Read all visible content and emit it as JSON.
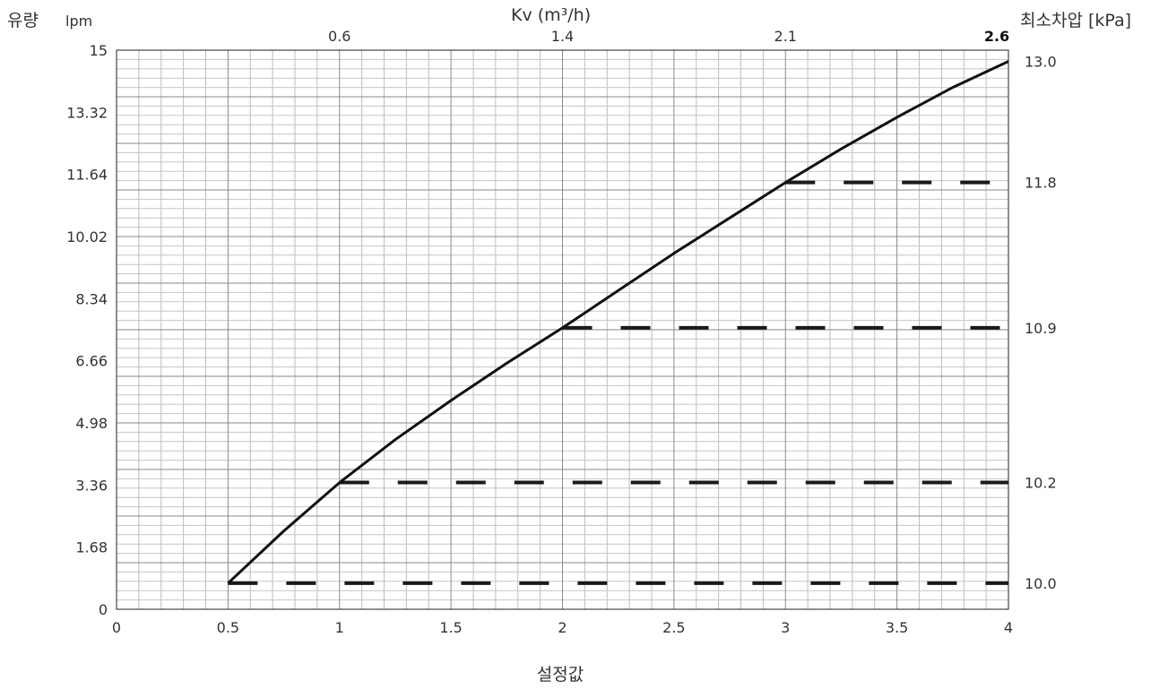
{
  "chart_data": {
    "type": "line",
    "title": "",
    "xlabel": "설정값",
    "ylabel": "유량",
    "ylabel_unit": "lpm",
    "top_axis_label": "Kv (m³/h)",
    "right_axis_label": "최소차압 [kPa]",
    "xlim": [
      0,
      4
    ],
    "ylim": [
      0,
      15
    ],
    "x_ticks": [
      "0",
      "0.5",
      "1",
      "1.5",
      "2",
      "2.5",
      "3",
      "3.5",
      "4"
    ],
    "y_ticks": [
      "0",
      "1.68",
      "3.36",
      "4.98",
      "6.66",
      "8.34",
      "10.02",
      "11.64",
      "13.32",
      "15"
    ],
    "top_ticks": [
      {
        "x": 1,
        "label": "0.6",
        "bold": false
      },
      {
        "x": 2,
        "label": "1.4",
        "bold": false
      },
      {
        "x": 3,
        "label": "2.1",
        "bold": false
      },
      {
        "x": 4,
        "label": "2.6",
        "bold": true
      }
    ],
    "grid": true,
    "series": [
      {
        "x": [
          0.5,
          0.75,
          1.0,
          1.25,
          1.5,
          1.75,
          2.0,
          2.25,
          2.5,
          2.75,
          3.0,
          3.25,
          3.5,
          3.75,
          4.0
        ],
        "y": [
          0.7,
          2.1,
          3.4,
          4.55,
          5.6,
          6.6,
          7.55,
          8.55,
          9.55,
          10.5,
          11.45,
          12.35,
          13.2,
          14.0,
          14.7
        ]
      }
    ],
    "dashed_levels": [
      {
        "x_start": 0.5,
        "x_end": 4,
        "y": 0.7,
        "right_label": "10.0"
      },
      {
        "x_start": 1,
        "x_end": 4,
        "y": 3.4,
        "right_label": "10.2"
      },
      {
        "x_start": 2,
        "x_end": 4,
        "y": 7.55,
        "right_label": "10.9"
      },
      {
        "x_start": 3,
        "x_end": 4,
        "y": 11.45,
        "right_label": "11.8"
      },
      {
        "x_start": 4,
        "x_end": 4,
        "y": 14.7,
        "right_label": "13.0"
      }
    ]
  }
}
